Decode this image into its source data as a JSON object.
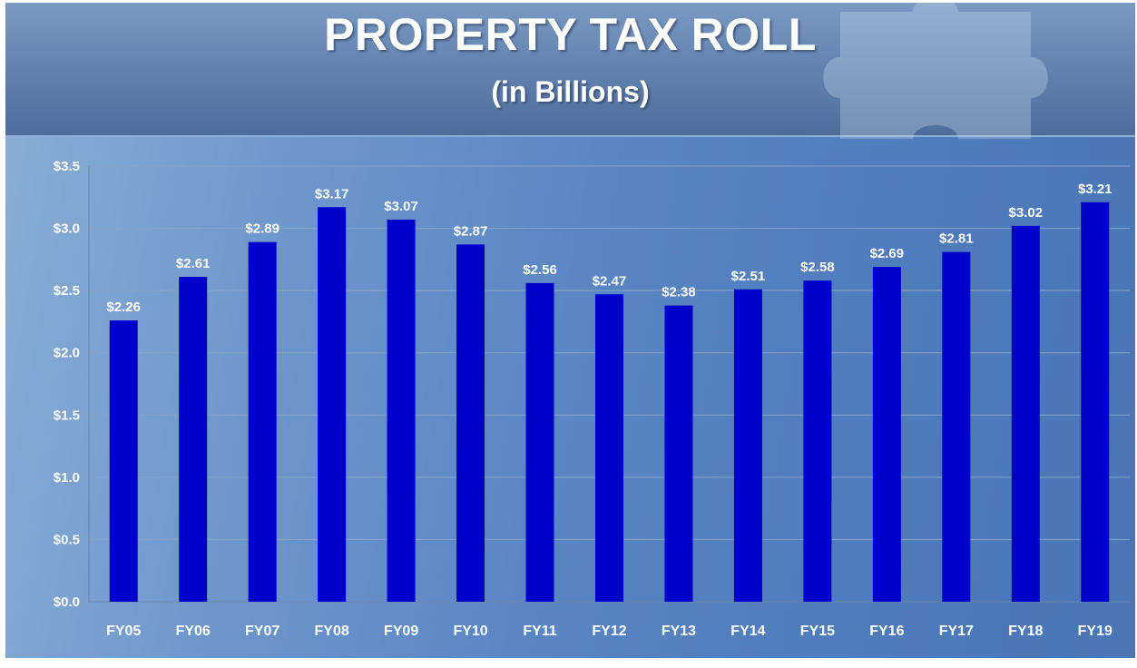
{
  "colors": {
    "bar": "#0000cc",
    "gridline": "#8aa3c4",
    "axis": "#6f86a8",
    "text": "#ffffff"
  },
  "chart_data": {
    "type": "bar",
    "title": "PROPERTY TAX ROLL",
    "subtitle": "(in Billions)",
    "categories": [
      "FY05",
      "FY06",
      "FY07",
      "FY08",
      "FY09",
      "FY10",
      "FY11",
      "FY12",
      "FY13",
      "FY14",
      "FY15",
      "FY16",
      "FY17",
      "FY18",
      "FY19"
    ],
    "values": [
      2.26,
      2.61,
      2.89,
      3.17,
      3.07,
      2.87,
      2.56,
      2.47,
      2.38,
      2.51,
      2.58,
      2.69,
      2.81,
      3.02,
      3.21
    ],
    "value_labels": [
      "$2.26",
      "$2.61",
      "$2.89",
      "$3.17",
      "$3.07",
      "$2.87",
      "$2.56",
      "$2.47",
      "$2.38",
      "$2.51",
      "$2.58",
      "$2.69",
      "$2.81",
      "$3.02",
      "$3.21"
    ],
    "yticks": [
      0,
      0.5,
      1.0,
      1.5,
      2.0,
      2.5,
      3.0,
      3.5
    ],
    "ytick_labels": [
      "$0.0",
      "$0.5",
      "$1.0",
      "$1.5",
      "$2.0",
      "$2.5",
      "$3.0",
      "$3.5"
    ],
    "ylim": [
      0,
      3.5
    ],
    "grid": true,
    "legend": "none"
  }
}
